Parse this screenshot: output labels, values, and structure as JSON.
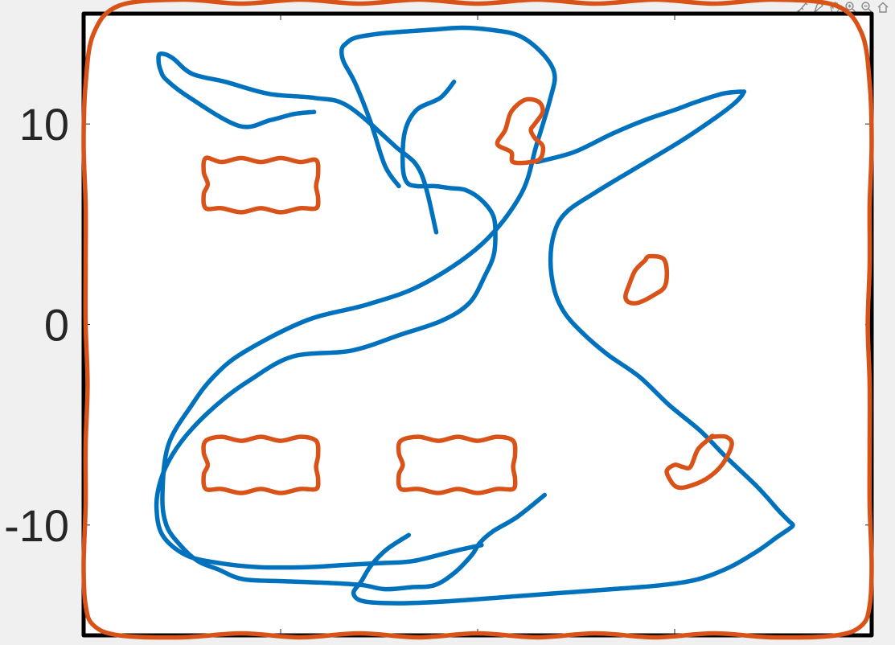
{
  "chart_data": {
    "type": "line",
    "title": "",
    "xlabel": "",
    "ylabel": "",
    "xlim": [
      -20,
      20
    ],
    "ylim": [
      -15.5,
      15.5
    ],
    "xticks": [
      -10,
      0,
      10
    ],
    "yticks": [
      10,
      0,
      -10
    ],
    "ytick_labels": [
      "10",
      "0",
      "-10"
    ],
    "grid": false,
    "colors": {
      "blue": "#0072bd",
      "orange": "#d95319",
      "black": "#000000"
    },
    "series": [
      {
        "color": "#0072bd",
        "closed": false,
        "x": [
          -4.0,
          -4.7,
          -5.4,
          -6.2,
          -6.8,
          -6.9,
          -6.7,
          -6.2,
          -5.0,
          -3.8,
          -2.3,
          -0.8,
          0.6,
          2.1,
          3.3,
          3.9,
          3.7,
          3.0,
          2.2,
          0.2,
          -2.8,
          -5.6,
          -8.7,
          -11.9,
          -13.4,
          -14.5,
          -15.7,
          -16.0,
          -15.8,
          -15.1,
          -14.2,
          -13.2,
          -11.9,
          -9.8,
          -7.2,
          -5.8,
          -4.7,
          -3.4,
          -2.2,
          -1.2,
          -0.3,
          0.1,
          0.8,
          2.0,
          3.4
        ],
        "y": [
          6.9,
          7.9,
          10.0,
          12.0,
          13.1,
          13.7,
          14.0,
          14.3,
          14.5,
          14.6,
          14.7,
          14.8,
          14.7,
          14.4,
          13.5,
          12.5,
          11.3,
          9.0,
          6.5,
          4.0,
          2.0,
          1.0,
          0.2,
          -1.4,
          -2.6,
          -4.0,
          -6.0,
          -8.5,
          -10.0,
          -11.0,
          -11.8,
          -12.2,
          -12.7,
          -12.8,
          -12.9,
          -13.0,
          -13.2,
          -13.1,
          -13.0,
          -12.4,
          -11.5,
          -10.9,
          -10.3,
          -9.6,
          -8.5
        ]
      },
      {
        "color": "#0072bd",
        "closed": false,
        "x": [
          0.2,
          -1.2,
          -3.3,
          -5.0,
          -6.9,
          -8.7,
          -11.1,
          -13.1,
          -14.8,
          -16.0,
          -16.3,
          -16.1,
          -15.5,
          -14.5,
          -13.0,
          -11.6,
          -9.4,
          -6.4,
          -3.9,
          -1.8,
          -0.4,
          0.4,
          0.8,
          0.9,
          0.8,
          0.2,
          -0.6,
          -1.4,
          -2.2,
          -3.1,
          -3.6,
          -3.8,
          -3.7,
          -3.1,
          -1.9,
          -1.2
        ],
        "y": [
          -11.0,
          -11.3,
          -11.8,
          -11.9,
          -12.0,
          -12.1,
          -12.1,
          -11.9,
          -11.5,
          -10.5,
          -9.1,
          -7.8,
          -6.5,
          -5.2,
          -3.8,
          -2.8,
          -1.6,
          -1.3,
          -0.5,
          0.2,
          1.1,
          2.5,
          3.4,
          4.3,
          5.4,
          6.2,
          6.7,
          6.8,
          6.9,
          6.9,
          7.1,
          7.9,
          9.6,
          10.7,
          11.3,
          12.1
        ]
      },
      {
        "color": "#0072bd",
        "closed": false,
        "x": [
          -8.3,
          -9.3,
          -10.5,
          -12.1,
          -14.6,
          -15.8,
          -16.1,
          -16.2,
          -16.1,
          -15.5,
          -14.5,
          -12.8,
          -10.6,
          -8.3,
          -6.6,
          -4.2,
          -2.9,
          -2.1
        ],
        "y": [
          10.6,
          10.5,
          10.2,
          9.9,
          11.3,
          12.2,
          12.7,
          13.2,
          13.5,
          13.3,
          12.5,
          12.1,
          11.5,
          11.3,
          10.9,
          8.9,
          7.6,
          4.6
        ]
      },
      {
        "color": "#0072bd",
        "closed": false,
        "x": [
          3.0,
          4.9,
          6.8,
          8.5,
          10.0,
          11.1,
          12.4,
          13.2,
          13.5,
          13.5,
          13.4,
          13.0,
          12.2,
          10.4,
          8.2,
          6.0,
          4.5,
          3.9,
          3.7,
          3.9,
          4.4,
          5.3,
          6.6,
          8.2,
          9.7,
          11.3,
          12.6,
          14.2,
          15.3,
          15.8,
          16.0,
          15.8,
          15.2,
          14.2,
          12.8,
          11.2,
          9.3,
          6.8,
          4.0,
          1.3,
          -1.5,
          -4.0,
          -5.8,
          -6.3,
          -5.9,
          -5.4,
          -4.6,
          -3.5
        ],
        "y": [
          8.1,
          8.6,
          9.5,
          10.2,
          10.7,
          11.1,
          11.5,
          11.6,
          11.6,
          11.6,
          11.4,
          11.0,
          10.4,
          9.2,
          7.9,
          6.6,
          5.6,
          4.6,
          3.2,
          1.7,
          0.6,
          -0.4,
          -1.5,
          -2.6,
          -4.0,
          -5.3,
          -6.6,
          -8.1,
          -9.3,
          -9.8,
          -10.0,
          -10.2,
          -10.6,
          -11.3,
          -12.1,
          -12.7,
          -13.0,
          -13.2,
          -13.4,
          -13.6,
          -13.8,
          -13.9,
          -13.8,
          -13.4,
          -12.8,
          -12.0,
          -11.2,
          -10.5
        ]
      },
      {
        "color": "#d95319",
        "closed": true,
        "x": [
          -18.2,
          -15.0,
          -12.0,
          -9.0,
          -6.0,
          -3.0,
          0.0,
          3.0,
          6.0,
          9.0,
          12.0,
          15.0,
          18.2,
          19.5,
          19.9,
          20.0,
          19.9,
          19.9,
          19.8,
          19.9,
          19.9,
          19.9,
          20.0,
          19.9,
          19.5,
          18.2,
          15.0,
          12.0,
          9.0,
          6.0,
          3.0,
          0.0,
          -3.0,
          -6.0,
          -9.0,
          -12.0,
          -15.0,
          -18.2,
          -19.5,
          -19.9,
          -20.0,
          -19.9,
          -19.9,
          -19.8,
          -19.9,
          -19.9,
          -19.9,
          -20.0,
          -19.9,
          -19.5
        ],
        "y": [
          15.9,
          16.2,
          16.0,
          16.2,
          16.0,
          16.2,
          16.0,
          16.2,
          16.0,
          16.2,
          16.0,
          16.2,
          15.9,
          14.5,
          12.0,
          9.0,
          6.0,
          3.0,
          0.0,
          -3.0,
          -6.0,
          -9.0,
          -12.0,
          -14.0,
          -15.0,
          -15.5,
          -15.6,
          -15.4,
          -15.6,
          -15.4,
          -15.6,
          -15.4,
          -15.6,
          -15.4,
          -15.6,
          -15.4,
          -15.6,
          -15.5,
          -15.0,
          -14.0,
          -12.0,
          -9.0,
          -6.0,
          -3.0,
          0.0,
          3.0,
          6.0,
          9.0,
          12.0,
          14.5
        ]
      },
      {
        "color": "#d95319",
        "closed": true,
        "x": [
          -13.8,
          -13.0,
          -12.0,
          -11.0,
          -10.0,
          -9.0,
          -8.2,
          -8.1,
          -8.2,
          -8.1,
          -8.2,
          -9.0,
          -10.0,
          -11.0,
          -12.0,
          -13.0,
          -13.8,
          -13.9,
          -13.7,
          -13.9
        ],
        "y": [
          8.3,
          8.1,
          8.3,
          8.1,
          8.3,
          8.1,
          8.2,
          7.5,
          6.9,
          6.3,
          5.8,
          5.8,
          5.6,
          5.8,
          5.6,
          5.8,
          5.8,
          6.5,
          7.0,
          7.6
        ]
      },
      {
        "color": "#d95319",
        "closed": true,
        "x": [
          -13.8,
          -13.0,
          -12.0,
          -11.0,
          -10.0,
          -9.0,
          -8.2,
          -8.1,
          -8.2,
          -8.1,
          -8.2,
          -9.0,
          -10.0,
          -11.0,
          -12.0,
          -13.0,
          -13.8,
          -13.9,
          -13.7,
          -13.9
        ],
        "y": [
          -5.8,
          -5.6,
          -5.8,
          -5.6,
          -5.8,
          -5.6,
          -5.8,
          -6.5,
          -7.1,
          -7.7,
          -8.2,
          -8.2,
          -8.4,
          -8.2,
          -8.4,
          -8.2,
          -8.2,
          -7.5,
          -7.0,
          -6.4
        ]
      },
      {
        "color": "#d95319",
        "closed": true,
        "x": [
          -3.9,
          -3.0,
          -2.0,
          -1.0,
          0.0,
          1.0,
          1.8,
          1.9,
          1.8,
          1.9,
          1.8,
          1.0,
          0.0,
          -1.0,
          -2.0,
          -3.0,
          -3.9,
          -4.0,
          -3.8,
          -4.0
        ],
        "y": [
          -5.8,
          -5.6,
          -5.8,
          -5.6,
          -5.8,
          -5.6,
          -5.8,
          -6.5,
          -7.1,
          -7.7,
          -8.2,
          -8.2,
          -8.4,
          -8.2,
          -8.4,
          -8.2,
          -8.2,
          -7.5,
          -7.0,
          -6.4
        ]
      },
      {
        "color": "#d95319",
        "closed": true,
        "x": [
          1.7,
          1.0,
          1.4,
          1.7,
          2.4,
          3.1,
          3.3,
          2.9,
          2.7,
          2.9,
          3.3,
          3.2,
          2.7,
          1.8
        ],
        "y": [
          8.6,
          9.0,
          9.7,
          10.6,
          11.2,
          11.1,
          10.6,
          10.0,
          9.7,
          9.3,
          8.9,
          8.3,
          8.1,
          8.1
        ]
      },
      {
        "color": "#d95319",
        "closed": true,
        "x": [
          8.5,
          8.0,
          7.7,
          7.5,
          7.7,
          8.2,
          9.0,
          9.5,
          9.6,
          9.4,
          8.7,
          8.5
        ],
        "y": [
          3.2,
          2.7,
          2.0,
          1.4,
          1.1,
          1.1,
          1.5,
          1.9,
          2.7,
          3.3,
          3.4,
          3.2
        ]
      },
      {
        "color": "#d95319",
        "closed": true,
        "x": [
          11.9,
          12.6,
          12.9,
          12.4,
          11.6,
          10.6,
          10.1,
          9.8,
          9.6,
          10.0,
          10.4,
          10.8,
          11.2,
          11.9
        ],
        "y": [
          -5.6,
          -5.6,
          -6.0,
          -7.0,
          -7.7,
          -8.1,
          -8.1,
          -7.8,
          -7.3,
          -7.0,
          -7.1,
          -7.1,
          -6.2,
          -5.6
        ]
      },
      {
        "color": "#000000",
        "closed": true,
        "x": [
          -20.0,
          20.0,
          20.0,
          -20.0
        ],
        "y": [
          15.5,
          15.5,
          -15.5,
          -15.5
        ]
      }
    ]
  },
  "toolbar": {
    "icons": [
      "data-tip-icon",
      "brush-icon",
      "pan-icon",
      "zoom-in-icon",
      "zoom-out-icon",
      "home-icon"
    ]
  }
}
